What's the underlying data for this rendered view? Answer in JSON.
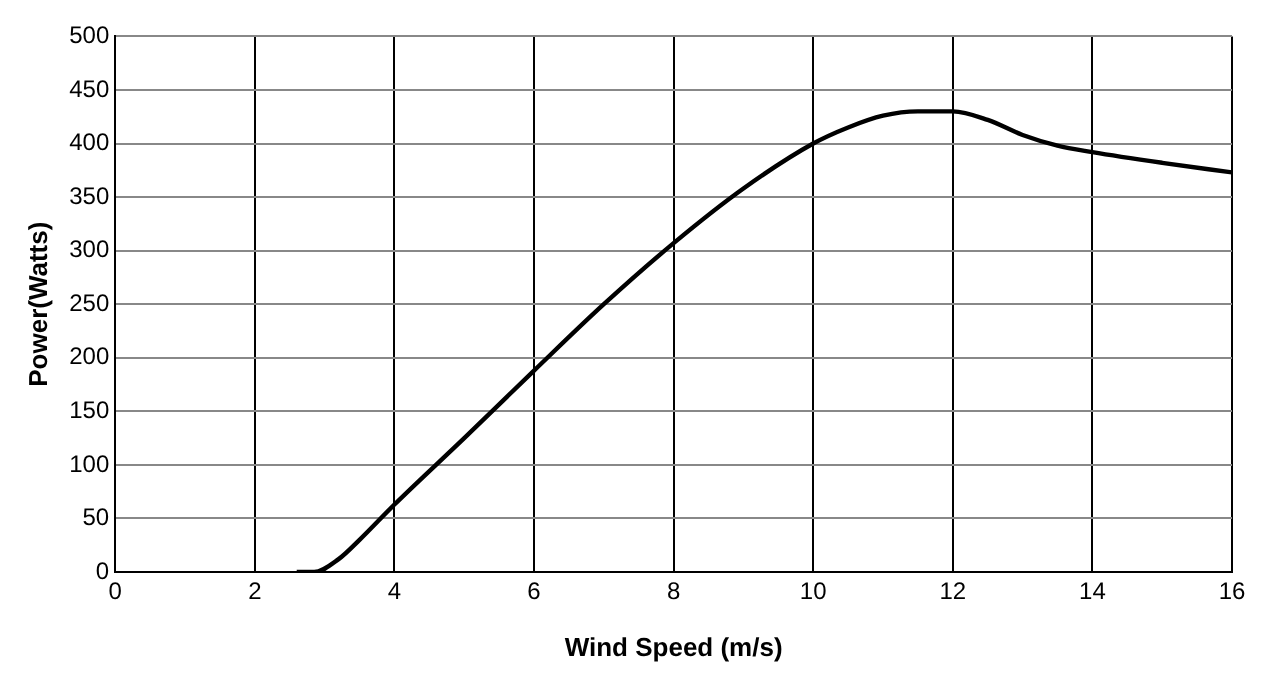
{
  "chart_data": {
    "type": "line",
    "xlabel": "Wind Speed (m/s)",
    "ylabel": "Power(Watts)",
    "x": [
      2.6,
      2.85,
      3.2,
      3.5,
      4,
      5,
      6,
      7,
      8,
      9,
      10,
      10.5,
      11,
      11.5,
      12,
      12.5,
      13,
      13.5,
      14,
      15,
      16
    ],
    "series": [
      {
        "color": "#000000",
        "values": [
          0,
          0,
          12,
          30,
          63,
          125,
          188,
          250,
          307,
          358,
          400,
          415,
          426,
          430,
          430,
          422,
          408,
          398,
          392,
          382,
          373
        ]
      }
    ],
    "xlim": [
      0,
      16
    ],
    "xticks": [
      0,
      2,
      4,
      6,
      8,
      10,
      12,
      14,
      16
    ],
    "ylim": [
      0,
      500
    ],
    "yticks": [
      0,
      50,
      100,
      150,
      200,
      250,
      300,
      350,
      400,
      450,
      500
    ],
    "grid": true,
    "marker": "none",
    "line_style": "solid"
  }
}
